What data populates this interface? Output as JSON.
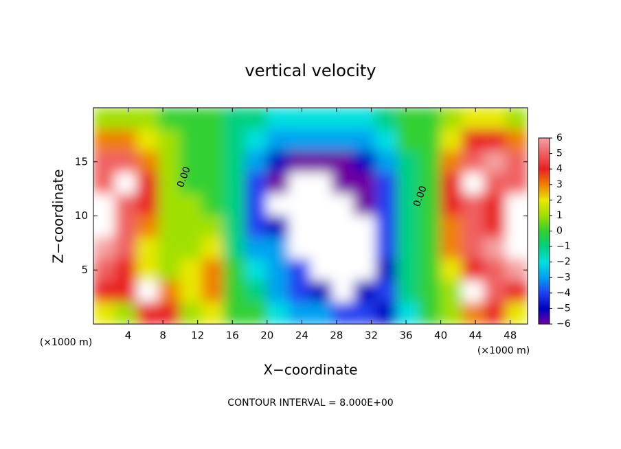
{
  "chart_data": {
    "type": "heatmap",
    "title": "vertical velocity",
    "x_label": "X−coordinate",
    "y_label": "Z−coordinate",
    "x_unit": "(×1000 m)",
    "y_unit": "(×1000 m)",
    "footer": "CONTOUR INTERVAL = 8.000E+00",
    "annotations": [
      "0.00",
      "0.00"
    ],
    "xlim": [
      0,
      50
    ],
    "ylim": [
      0,
      20
    ],
    "xticks": [
      4,
      8,
      12,
      16,
      20,
      24,
      28,
      32,
      36,
      40,
      44,
      48
    ],
    "yticks": [
      5,
      10,
      15
    ],
    "x": [
      1.25,
      3.75,
      6.25,
      8.75,
      11.25,
      13.75,
      16.25,
      18.75,
      21.25,
      23.75,
      26.25,
      28.75,
      31.25,
      33.75,
      36.25,
      38.75,
      41.25,
      43.75,
      46.25,
      48.75
    ],
    "y": [
      19,
      17,
      15,
      13,
      11,
      9,
      7,
      5,
      3,
      1
    ],
    "z": [
      [
        1,
        1,
        1,
        0,
        0,
        0,
        -1,
        -1,
        -2,
        -2,
        -2,
        -2,
        -2,
        -1,
        0,
        0,
        1,
        2,
        2,
        1
      ],
      [
        3,
        3,
        2,
        1,
        0,
        0,
        -1,
        -2,
        -3,
        -3,
        -3,
        -3,
        -3,
        -2,
        0,
        0,
        2,
        4,
        4,
        3
      ],
      [
        5,
        5,
        3,
        1,
        0,
        0,
        -1,
        -3,
        -5,
        -6,
        -6,
        -6,
        -5,
        -3,
        -1,
        0,
        3,
        5,
        6,
        5
      ],
      [
        5,
        7,
        4,
        1,
        0,
        0,
        -1,
        -4,
        -6,
        -7,
        -7,
        -6,
        -6,
        -4,
        -1,
        0,
        4,
        7,
        5,
        5
      ],
      [
        7,
        5,
        4,
        1,
        1,
        0,
        -1,
        -4,
        -7,
        -7,
        -7,
        -7,
        -6,
        -4,
        -1,
        0,
        4,
        5,
        4,
        7
      ],
      [
        7,
        5,
        3,
        1,
        1,
        1,
        -1,
        -4,
        -5,
        -7,
        -7,
        -7,
        -7,
        -4,
        -1,
        0,
        3,
        5,
        4,
        7
      ],
      [
        6,
        5,
        2,
        1,
        1,
        2,
        -1,
        -3,
        -3,
        -7,
        -7,
        -7,
        -7,
        -4,
        -1,
        0,
        3,
        5,
        6,
        7
      ],
      [
        5,
        4,
        2,
        1,
        2,
        3,
        0,
        -2,
        -3,
        -4,
        -7,
        -7,
        -7,
        -5,
        -1,
        0,
        2,
        4,
        5,
        6
      ],
      [
        4,
        4,
        7,
        3,
        2,
        3,
        0,
        -1,
        -3,
        -4,
        -5,
        -7,
        -5,
        -4,
        -1,
        0,
        1,
        7,
        5,
        4
      ],
      [
        2,
        1,
        4,
        4,
        1,
        2,
        0,
        0,
        -2,
        -3,
        -3,
        -4,
        -4,
        -5,
        -2,
        0,
        1,
        3,
        4,
        2
      ]
    ],
    "colorbar_ticks": [
      {
        "value": -6,
        "label": "−6"
      },
      {
        "value": -5,
        "label": "−5"
      },
      {
        "value": -4,
        "label": "−4"
      },
      {
        "value": -3,
        "label": "−3"
      },
      {
        "value": -2,
        "label": "−2"
      },
      {
        "value": -1,
        "label": "−1"
      },
      0,
      1,
      2,
      3,
      4,
      5,
      6
    ],
    "colors": [
      "#7000a0",
      "#0000c0",
      "#2040f0",
      "#00a0f0",
      "#00e0e0",
      "#00d080",
      "#30d030",
      "#a0e000",
      "#e8e800",
      "#f08000",
      "#e82020",
      "#f06060",
      "#f4a0a0"
    ],
    "out_of_range_color": "#ffffff"
  }
}
